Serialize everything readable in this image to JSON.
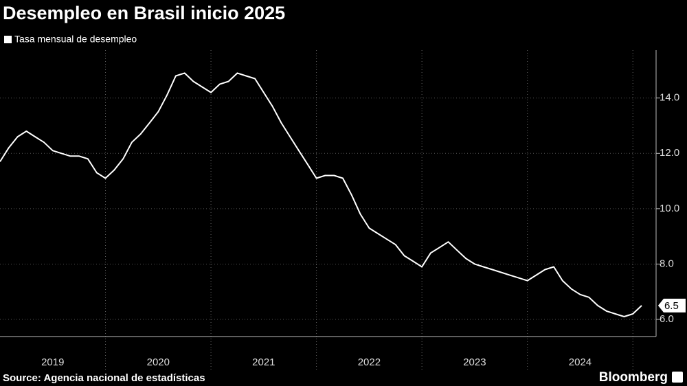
{
  "chart_data": {
    "type": "line",
    "title": "Desempleo en Brasil inicio 2025",
    "source": "Source: Agencia nacional de estadísticas",
    "logo": "Bloomberg",
    "x": [
      2019,
      2019.083,
      2019.167,
      2019.25,
      2019.333,
      2019.417,
      2019.5,
      2019.583,
      2019.667,
      2019.75,
      2019.833,
      2019.917,
      2020,
      2020.083,
      2020.167,
      2020.25,
      2020.333,
      2020.417,
      2020.5,
      2020.583,
      2020.667,
      2020.75,
      2020.833,
      2020.917,
      2021,
      2021.083,
      2021.167,
      2021.25,
      2021.333,
      2021.417,
      2021.5,
      2021.583,
      2021.667,
      2021.75,
      2021.833,
      2021.917,
      2022,
      2022.083,
      2022.167,
      2022.25,
      2022.333,
      2022.417,
      2022.5,
      2022.583,
      2022.667,
      2022.75,
      2022.833,
      2022.917,
      2023,
      2023.083,
      2023.167,
      2023.25,
      2023.333,
      2023.417,
      2023.5,
      2023.583,
      2023.667,
      2023.75,
      2023.833,
      2023.917,
      2024,
      2024.083,
      2024.167,
      2024.25,
      2024.333,
      2024.417,
      2024.5,
      2024.583,
      2024.667,
      2024.75,
      2024.833,
      2024.917,
      2025,
      2025.083
    ],
    "series": [
      {
        "name": "Tasa mensual de desempleo",
        "color": "#ffffff",
        "values": [
          11.7,
          12.2,
          12.6,
          12.8,
          12.6,
          12.4,
          12.1,
          12.0,
          11.9,
          11.9,
          11.8,
          11.3,
          11.1,
          11.4,
          11.8,
          12.4,
          12.7,
          13.1,
          13.5,
          14.1,
          14.8,
          14.9,
          14.6,
          14.4,
          14.2,
          14.5,
          14.6,
          14.9,
          14.8,
          14.7,
          14.2,
          13.7,
          13.1,
          12.6,
          12.1,
          11.6,
          11.1,
          11.2,
          11.2,
          11.1,
          10.5,
          9.8,
          9.3,
          9.1,
          8.9,
          8.7,
          8.3,
          8.1,
          7.9,
          8.4,
          8.6,
          8.8,
          8.5,
          8.2,
          8.0,
          7.9,
          7.8,
          7.7,
          7.6,
          7.5,
          7.4,
          7.6,
          7.8,
          7.9,
          7.4,
          7.1,
          6.9,
          6.8,
          6.5,
          6.3,
          6.2,
          6.1,
          6.2,
          6.5
        ]
      }
    ],
    "xlim": [
      2019,
      2025.22
    ],
    "xticks": [
      2020,
      2021,
      2022,
      2023,
      2024,
      2025
    ],
    "x_labels": [
      {
        "value": 2019.5,
        "label": "2019"
      },
      {
        "value": 2020.5,
        "label": "2020"
      },
      {
        "value": 2021.5,
        "label": "2021"
      },
      {
        "value": 2022.5,
        "label": "2022"
      },
      {
        "value": 2023.5,
        "label": "2023"
      },
      {
        "value": 2024.5,
        "label": "2024"
      }
    ],
    "ylim": [
      5.38,
      15.73
    ],
    "yticks": [
      {
        "value": 6,
        "label": "6.0"
      },
      {
        "value": 8,
        "label": "8.0"
      },
      {
        "value": 10,
        "label": "10.0"
      },
      {
        "value": 12,
        "label": "12.0"
      },
      {
        "value": 14,
        "label": "14.0"
      }
    ],
    "grid": true
  }
}
